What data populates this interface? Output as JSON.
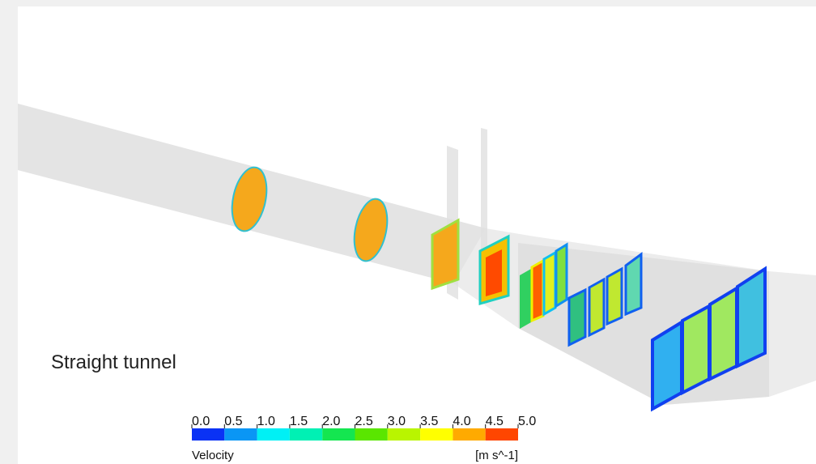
{
  "label": "Straight tunnel",
  "colorbar": {
    "title": "Velocity",
    "unit": "[m s^-1]",
    "ticks": [
      {
        "value": 0,
        "label": "0.0"
      },
      {
        "value": 0.5,
        "label": "0.5"
      },
      {
        "value": 1,
        "label": "1.0"
      },
      {
        "value": 1.5,
        "label": "1.5"
      },
      {
        "value": 2,
        "label": "2.0"
      },
      {
        "value": 2.5,
        "label": "2.5"
      },
      {
        "value": 3,
        "label": "3.0"
      },
      {
        "value": 3.5,
        "label": "3.5"
      },
      {
        "value": 4,
        "label": "4.0"
      },
      {
        "value": 4.5,
        "label": "4.5"
      },
      {
        "value": 5,
        "label": "5.0"
      }
    ],
    "colors": [
      "#0a32f5",
      "#0a96f5",
      "#00f0f5",
      "#00f0b4",
      "#14e650",
      "#5ae600",
      "#b9f500",
      "#ffff00",
      "#ffaa00",
      "#ff4600"
    ]
  }
}
